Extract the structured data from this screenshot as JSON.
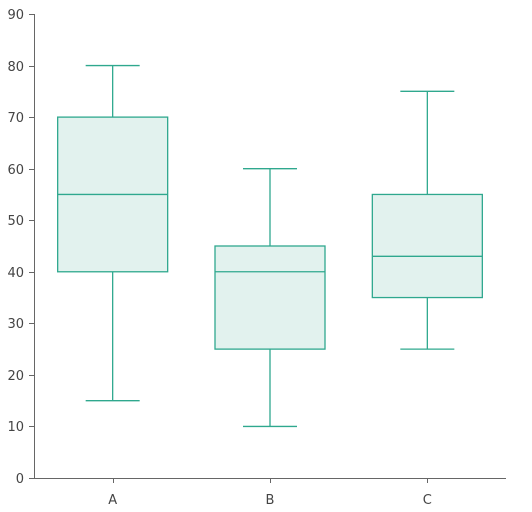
{
  "chart_data": {
    "type": "box",
    "categories": [
      "A",
      "B",
      "C"
    ],
    "boxes": [
      {
        "category": "A",
        "min": 15,
        "q1": 40,
        "median": 55,
        "q3": 70,
        "max": 80
      },
      {
        "category": "B",
        "min": 10,
        "q1": 25,
        "median": 40,
        "q3": 45,
        "max": 60
      },
      {
        "category": "C",
        "min": 25,
        "q1": 35,
        "median": 43,
        "q3": 55,
        "max": 75
      }
    ],
    "y_ticks": [
      "0",
      "10",
      "20",
      "30",
      "40",
      "50",
      "60",
      "70",
      "80",
      "90"
    ],
    "ylim": [
      0,
      90
    ],
    "title": "",
    "xlabel": "",
    "ylabel": "",
    "grid": false,
    "legend": "none",
    "colors": {
      "stroke": "#2fa88e",
      "fill": "#e2f2ee",
      "axis": "#666666",
      "text": "#444444"
    }
  }
}
